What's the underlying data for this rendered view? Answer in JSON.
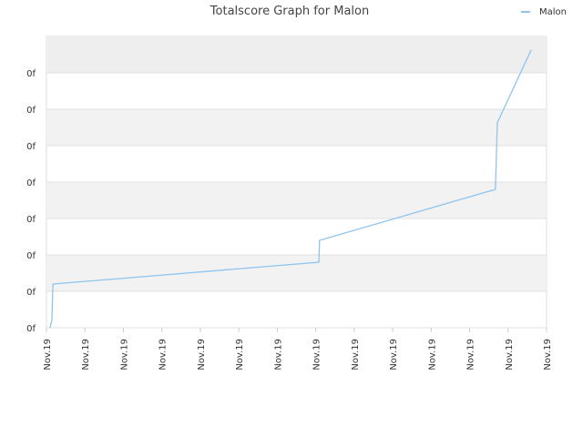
{
  "chart_data": {
    "type": "line",
    "title": "Totalscore Graph for Malon",
    "series": [
      {
        "name": "Malon",
        "color": "#90c4ee",
        "x": [
          0.09,
          0.14,
          0.17,
          7.08,
          7.1,
          11.67,
          11.72,
          12.6
        ],
        "values": [
          0,
          0.2,
          1.2,
          1.8,
          2.4,
          3.8,
          5.63,
          7.63
        ]
      }
    ],
    "xlim": [
      0,
      13
    ],
    "xticks": [
      {
        "value": 0,
        "label": "Nov.19"
      },
      {
        "value": 1,
        "label": "Nov.19"
      },
      {
        "value": 2,
        "label": "Nov.19"
      },
      {
        "value": 3,
        "label": "Nov.19"
      },
      {
        "value": 4,
        "label": "Nov.19"
      },
      {
        "value": 5,
        "label": "Nov.19"
      },
      {
        "value": 6,
        "label": "Nov.19"
      },
      {
        "value": 7,
        "label": "Nov.19"
      },
      {
        "value": 8,
        "label": "Nov.19"
      },
      {
        "value": 9,
        "label": "Nov.19"
      },
      {
        "value": 10,
        "label": "Nov.19"
      },
      {
        "value": 11,
        "label": "Nov.19"
      },
      {
        "value": 12,
        "label": "Nov.19"
      },
      {
        "value": 13,
        "label": "Nov.19"
      }
    ],
    "ylim": [
      0,
      8
    ],
    "yticks": [
      {
        "value": 0,
        "label": "0f"
      },
      {
        "value": 1,
        "label": "0f"
      },
      {
        "value": 2,
        "label": "0f"
      },
      {
        "value": 3,
        "label": "0f"
      },
      {
        "value": 4,
        "label": "0f"
      },
      {
        "value": 5,
        "label": "0f"
      },
      {
        "value": 6,
        "label": "0f"
      },
      {
        "value": 7,
        "label": "0f"
      }
    ],
    "grid": true,
    "legend": "top-right"
  }
}
